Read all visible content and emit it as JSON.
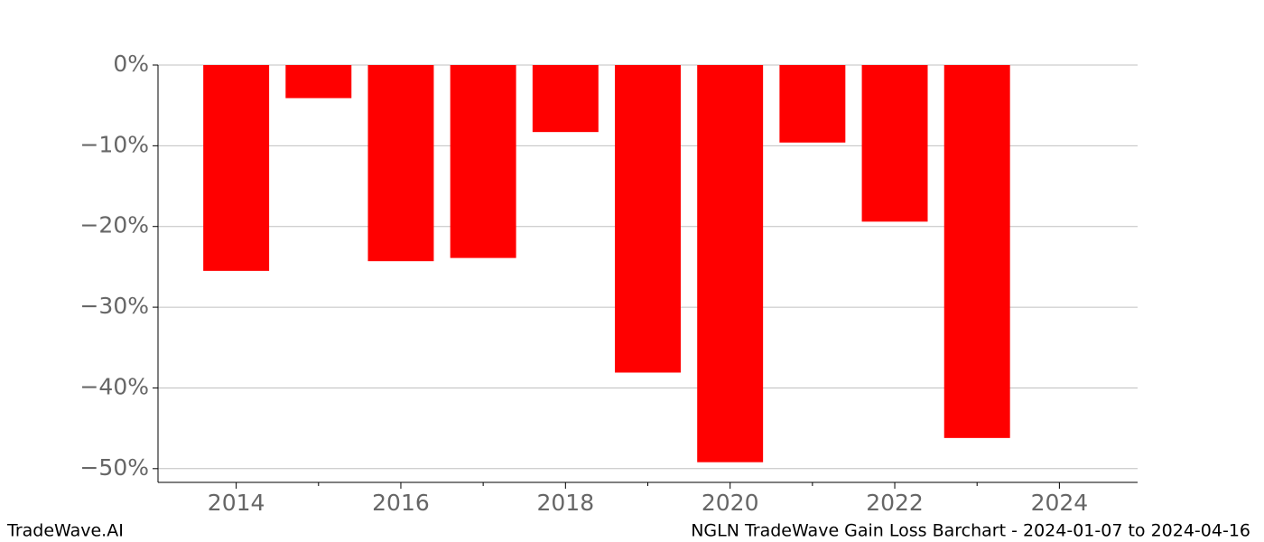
{
  "chart_data": {
    "type": "bar",
    "x": [
      2014,
      2015,
      2016,
      2017,
      2018,
      2019,
      2020,
      2021,
      2022,
      2023
    ],
    "values": [
      -25.5,
      -4.1,
      -24.3,
      -23.9,
      -8.3,
      -38.1,
      -49.2,
      -9.6,
      -19.4,
      -46.2
    ],
    "color": "#ff0000",
    "xlim": [
      2013.05,
      2024.95
    ],
    "xticks": [
      2014,
      2016,
      2018,
      2020,
      2022,
      2024
    ],
    "xminorticks": [
      2015,
      2017,
      2019,
      2021,
      2023
    ],
    "ylim": [
      -51.7,
      0
    ],
    "yticks": [
      {
        "value": 0,
        "label": "0%"
      },
      {
        "value": -10,
        "label": "−10%"
      },
      {
        "value": -20,
        "label": "−20%"
      },
      {
        "value": -30,
        "label": "−30%"
      },
      {
        "value": -40,
        "label": "−40%"
      },
      {
        "value": -50,
        "label": "−50%"
      }
    ],
    "grid": true
  },
  "footer": {
    "left": "TradeWave.AI",
    "right": "NGLN TradeWave Gain Loss Barchart - 2024-01-07 to 2024-04-16"
  }
}
